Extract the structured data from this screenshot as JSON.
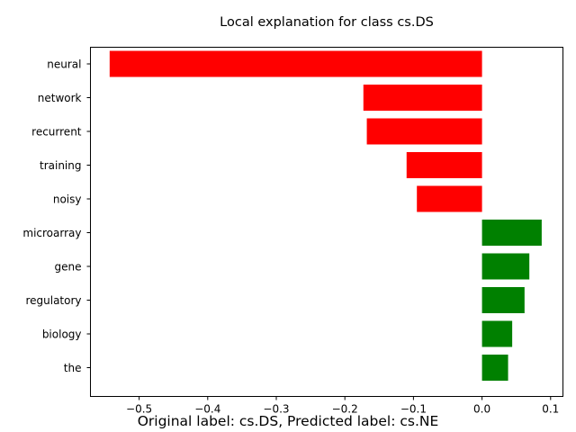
{
  "chart_data": {
    "type": "bar",
    "orientation": "horizontal",
    "title": "Local explanation for class cs.DS",
    "caption": "Original label: cs.DS, Predicted label: cs.NE",
    "categories": [
      "neural",
      "network",
      "recurrent",
      "training",
      "noisy",
      "microarray",
      "gene",
      "regulatory",
      "biology",
      "the"
    ],
    "values": [
      -0.543,
      -0.173,
      -0.168,
      -0.11,
      -0.095,
      0.087,
      0.069,
      0.062,
      0.044,
      0.038
    ],
    "xticks": [
      -0.5,
      -0.4,
      -0.3,
      -0.2,
      -0.1,
      0.0,
      0.1
    ],
    "xtick_labels": [
      "−0.5",
      "−0.4",
      "−0.3",
      "−0.2",
      "−0.1",
      "0.0",
      "0.1"
    ],
    "xlim": [
      -0.571,
      0.118
    ],
    "xlabel": "",
    "ylabel": "",
    "grid": false,
    "colors": {
      "negative": "#ff0000",
      "positive": "#008000",
      "axis": "#000000"
    }
  }
}
